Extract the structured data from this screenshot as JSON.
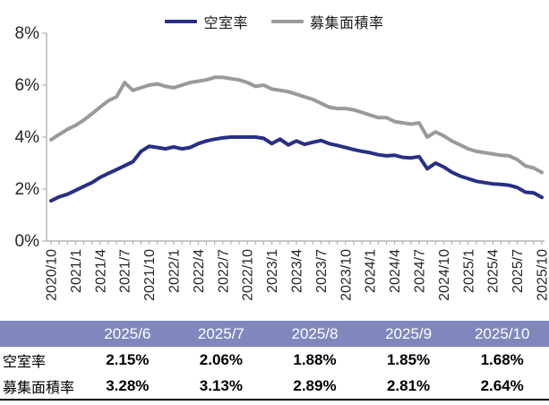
{
  "chart_data": {
    "type": "line",
    "x": [
      "2020/10",
      "2020/11",
      "2020/12",
      "2021/1",
      "2021/2",
      "2021/3",
      "2021/4",
      "2021/5",
      "2021/6",
      "2021/7",
      "2021/8",
      "2021/9",
      "2021/10",
      "2021/11",
      "2021/12",
      "2022/1",
      "2022/2",
      "2022/3",
      "2022/4",
      "2022/5",
      "2022/6",
      "2022/7",
      "2022/8",
      "2022/9",
      "2022/10",
      "2022/11",
      "2022/12",
      "2023/1",
      "2023/2",
      "2023/3",
      "2023/4",
      "2023/5",
      "2023/6",
      "2023/7",
      "2023/8",
      "2023/9",
      "2023/10",
      "2023/11",
      "2023/12",
      "2024/1",
      "2024/2",
      "2024/3",
      "2024/4",
      "2024/5",
      "2024/6",
      "2024/7",
      "2024/8",
      "2024/9",
      "2024/10",
      "2024/11",
      "2024/12",
      "2025/1",
      "2025/2",
      "2025/3",
      "2025/4",
      "2025/5",
      "2025/6",
      "2025/7",
      "2025/8",
      "2025/9",
      "2025/10"
    ],
    "series": [
      {
        "name": "空室率",
        "color": "#282f84",
        "values": [
          1.55,
          1.7,
          1.8,
          1.95,
          2.1,
          2.25,
          2.45,
          2.6,
          2.75,
          2.9,
          3.05,
          3.45,
          3.65,
          3.6,
          3.55,
          3.62,
          3.55,
          3.6,
          3.75,
          3.85,
          3.92,
          3.97,
          4.0,
          4.0,
          4.0,
          4.0,
          3.95,
          3.75,
          3.92,
          3.7,
          3.85,
          3.72,
          3.8,
          3.87,
          3.75,
          3.68,
          3.6,
          3.52,
          3.45,
          3.4,
          3.32,
          3.28,
          3.3,
          3.22,
          3.2,
          3.25,
          2.78,
          3.0,
          2.85,
          2.65,
          2.5,
          2.4,
          2.3,
          2.25,
          2.2,
          2.18,
          2.15,
          2.06,
          1.88,
          1.85,
          1.68
        ]
      },
      {
        "name": "募集面積率",
        "color": "#9a9a9a",
        "values": [
          3.9,
          4.1,
          4.3,
          4.45,
          4.65,
          4.9,
          5.15,
          5.4,
          5.55,
          6.1,
          5.8,
          5.9,
          6.0,
          6.05,
          5.95,
          5.9,
          6.0,
          6.1,
          6.15,
          6.2,
          6.3,
          6.3,
          6.25,
          6.2,
          6.1,
          5.95,
          6.0,
          5.85,
          5.8,
          5.75,
          5.65,
          5.55,
          5.45,
          5.3,
          5.15,
          5.1,
          5.1,
          5.05,
          4.95,
          4.85,
          4.75,
          4.75,
          4.6,
          4.55,
          4.5,
          4.55,
          4.0,
          4.2,
          4.05,
          3.85,
          3.7,
          3.55,
          3.45,
          3.4,
          3.35,
          3.3,
          3.28,
          3.13,
          2.89,
          2.81,
          2.64
        ]
      }
    ],
    "title": "",
    "xlabel": "",
    "ylabel": "",
    "ylim": [
      0,
      8
    ],
    "ytick_labels": [
      "0%",
      "2%",
      "4%",
      "6%",
      "8%"
    ],
    "xtick_every": 3,
    "grid": false,
    "legend_position": "top",
    "axis_color": "#a6a6a6"
  },
  "table": {
    "header_bg": "#7f87bd",
    "header_text_color": "#ffffff",
    "columns": [
      "",
      "2025/6",
      "2025/7",
      "2025/8",
      "2025/9",
      "2025/10"
    ],
    "rows": [
      {
        "label": "空室率",
        "values": [
          "2.15%",
          "2.06%",
          "1.88%",
          "1.85%",
          "1.68%"
        ]
      },
      {
        "label": "募集面積率",
        "values": [
          "3.28%",
          "3.13%",
          "2.89%",
          "2.81%",
          "2.64%"
        ]
      }
    ]
  }
}
